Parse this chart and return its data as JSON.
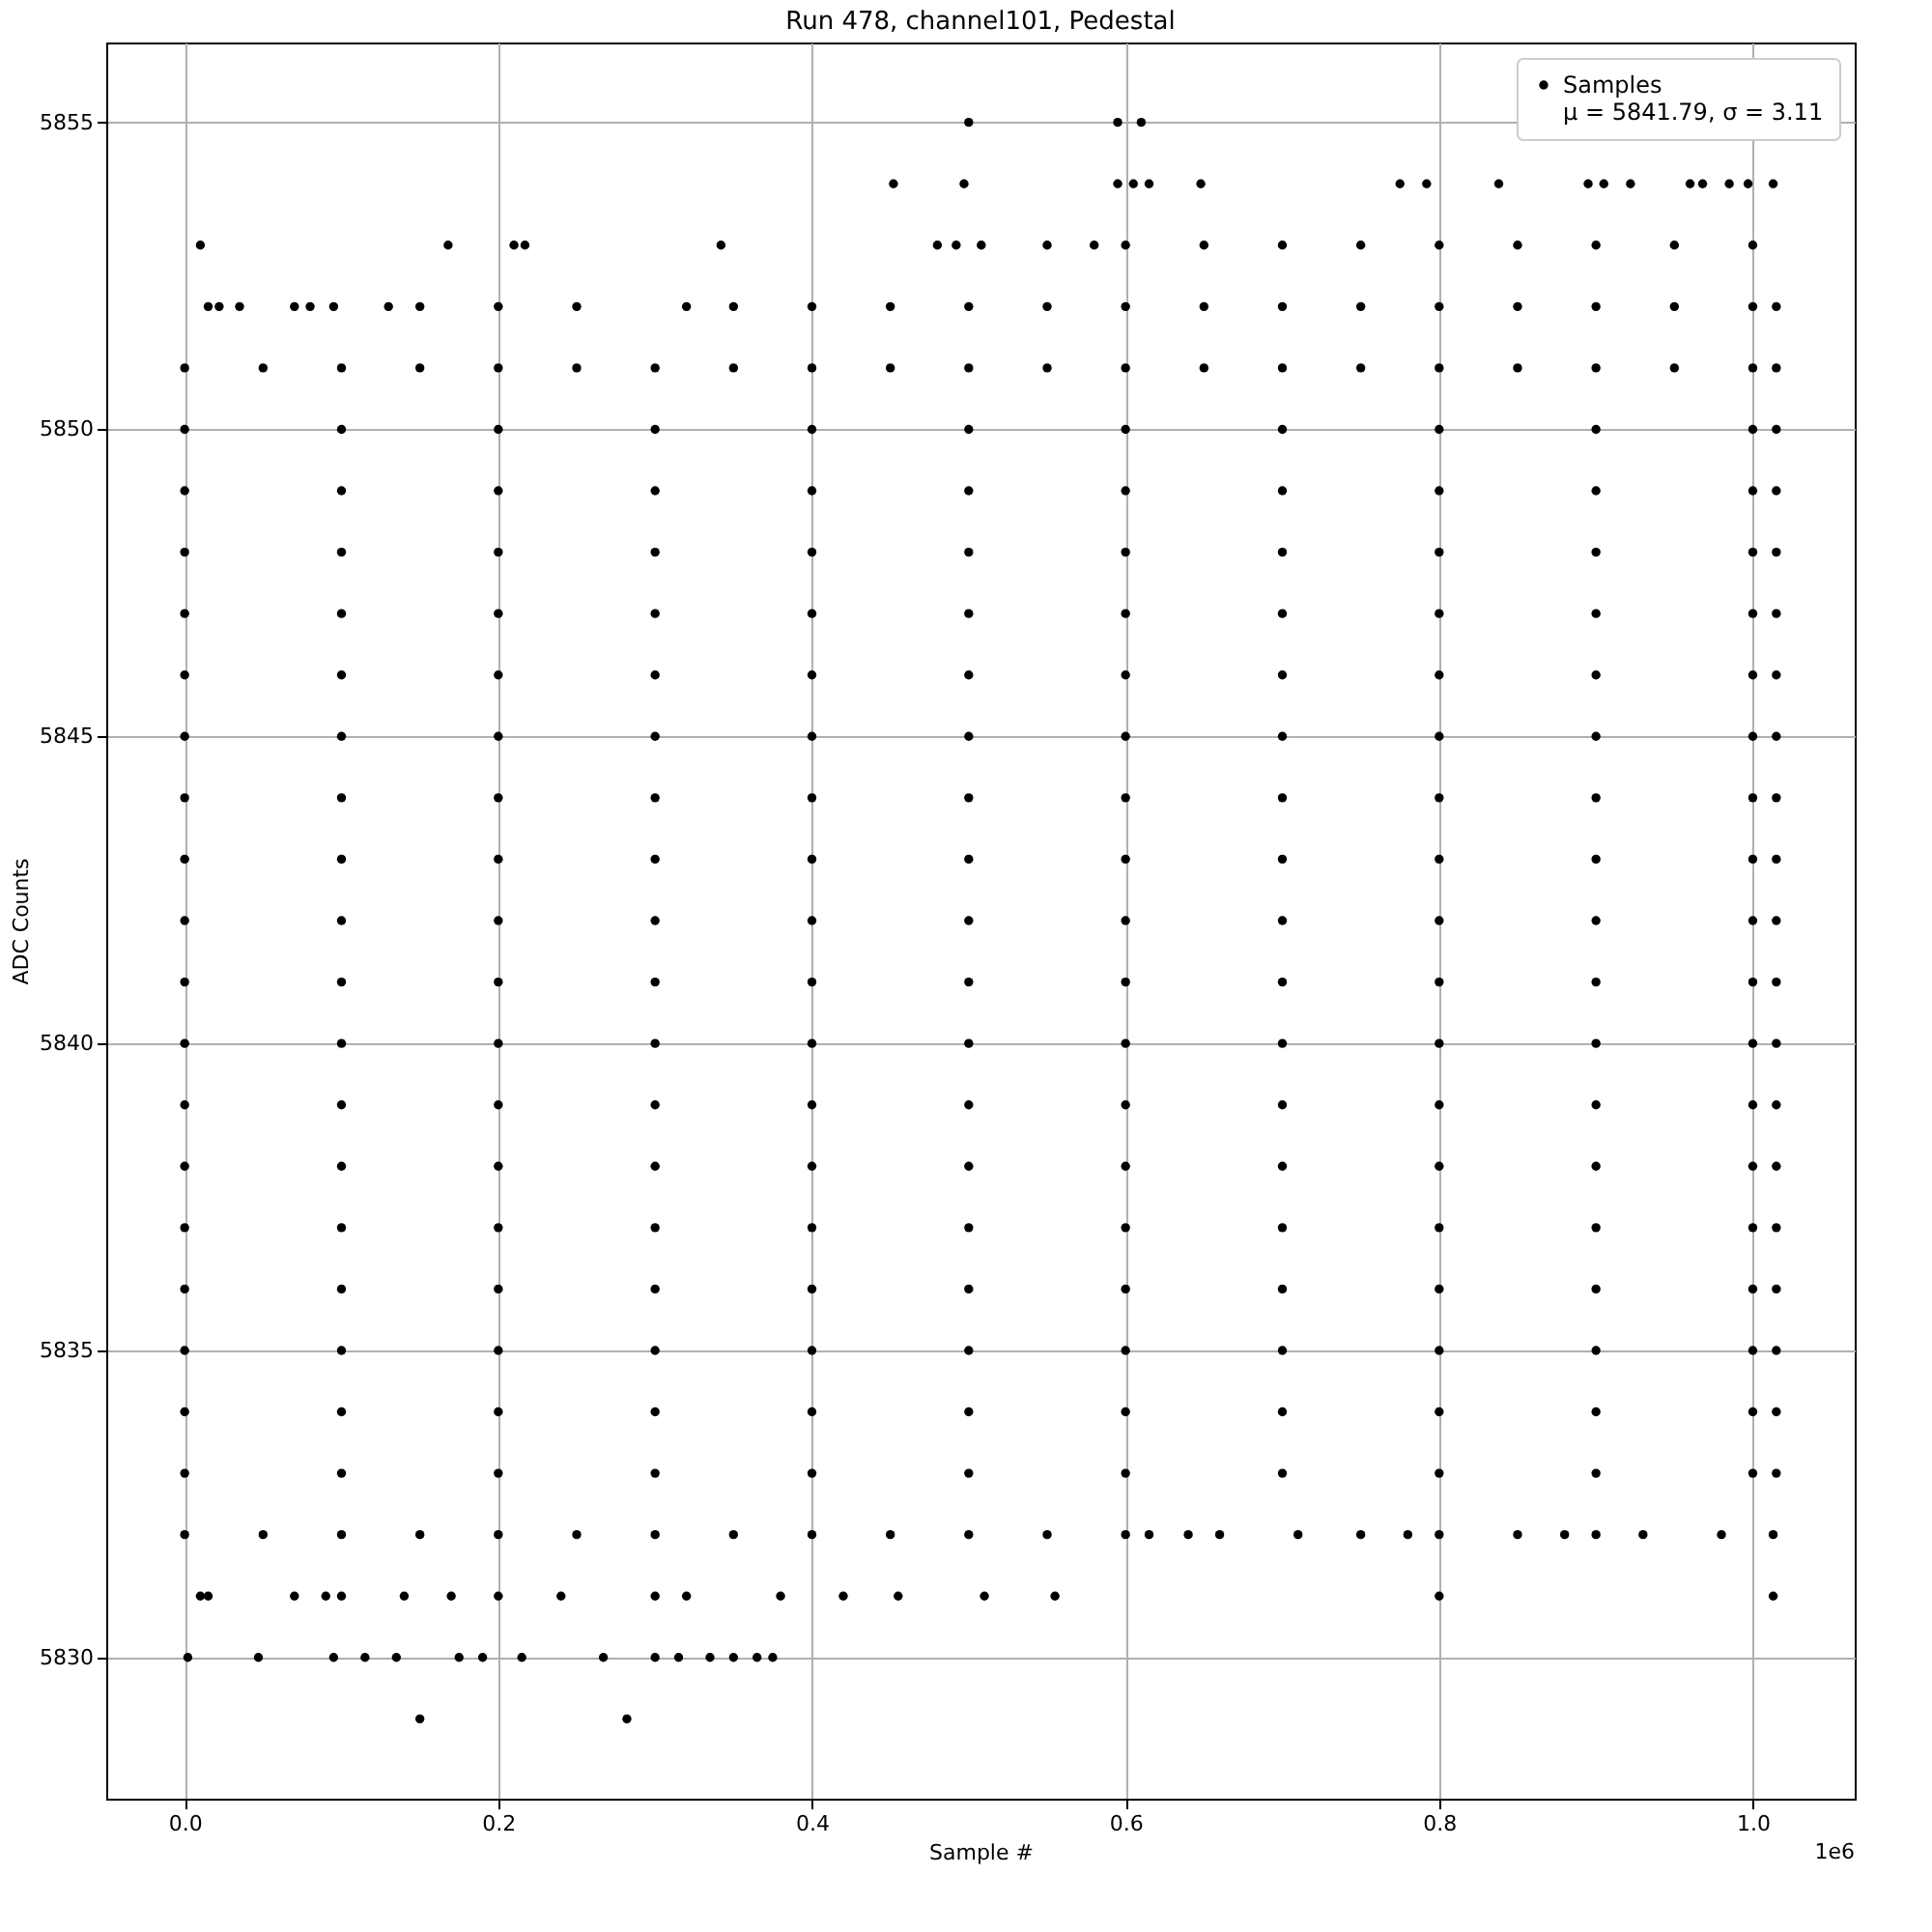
{
  "chart_data": {
    "type": "scatter",
    "title": "Run 478, channel101, Pedestal",
    "xlabel": "Sample #",
    "ylabel": "ADC Counts",
    "annotations": [
      "1e6",
      "μ = 5841.79, σ = 3.11"
    ],
    "xlim": [
      -0.05,
      1.065
    ],
    "ylim": [
      5827.7,
      5856.3
    ],
    "xticks": [
      {
        "value": 0,
        "label": "0.0"
      },
      {
        "value": 0.2,
        "label": "0.2"
      },
      {
        "value": 0.4,
        "label": "0.4"
      },
      {
        "value": 0.6,
        "label": "0.6"
      },
      {
        "value": 0.8,
        "label": "0.8"
      },
      {
        "value": 1.0,
        "label": "1.0"
      }
    ],
    "yticks": [
      5830,
      5835,
      5840,
      5845,
      5850,
      5855
    ],
    "grid": true,
    "legend": "top right",
    "marker": "circle",
    "series": [
      {
        "name": "Samples",
        "color": "#000000",
        "x": [
          0,
          0.1,
          0.2,
          0.3,
          0.4,
          0.5,
          0.6,
          0.7,
          0.8,
          0.9,
          1.0,
          1.015
        ],
        "values": [
          5850,
          5850,
          5850,
          5850,
          5850,
          5850,
          5850,
          5850,
          5850,
          5850,
          5850,
          5850
        ]
      },
      {
        "color": "#000000",
        "x": [
          0.5,
          0.595,
          0.61
        ],
        "values": [
          5855,
          5855,
          5855
        ]
      },
      {
        "color": "#000000",
        "x": [
          0.452,
          0.497,
          0.595,
          0.605,
          0.615,
          0.648,
          0.775,
          0.792,
          0.838,
          0.895,
          0.905,
          0.922,
          0.96,
          0.968,
          0.985,
          0.997,
          1.013
        ],
        "values": [
          5854,
          5854,
          5854,
          5854,
          5854,
          5854,
          5854,
          5854,
          5854,
          5854,
          5854,
          5854,
          5854,
          5854,
          5854,
          5854,
          5854
        ]
      },
      {
        "color": "#000000",
        "x": [
          0.01,
          0.168,
          0.21,
          0.217,
          0.342,
          0.48,
          0.492,
          0.508,
          0.55,
          0.58,
          0.6,
          0.65,
          0.7,
          0.75,
          0.8,
          0.85,
          0.9,
          0.95,
          1.0
        ],
        "values": [
          5853,
          5853,
          5853,
          5853,
          5853,
          5853,
          5853,
          5853,
          5853,
          5853,
          5853,
          5853,
          5853,
          5853,
          5853,
          5853,
          5853,
          5853,
          5853
        ]
      },
      {
        "color": "#000000",
        "x": [
          0.015,
          0.022,
          0.035,
          0.07,
          0.08,
          0.095,
          0.13,
          0.15,
          0.2,
          0.25,
          0.32,
          0.35,
          0.4,
          0.45,
          0.5,
          0.55,
          0.6,
          0.65,
          0.7,
          0.75,
          0.8,
          0.85,
          0.9,
          0.95,
          1.0,
          1.015
        ],
        "values": [
          5852,
          5852,
          5852,
          5852,
          5852,
          5852,
          5852,
          5852,
          5852,
          5852,
          5852,
          5852,
          5852,
          5852,
          5852,
          5852,
          5852,
          5852,
          5852,
          5852,
          5852,
          5852,
          5852,
          5852,
          5852,
          5852
        ]
      },
      {
        "color": "#000000",
        "x": [
          0,
          0.05,
          0.1,
          0.15,
          0.2,
          0.25,
          0.3,
          0.35,
          0.4,
          0.45,
          0.5,
          0.55,
          0.6,
          0.65,
          0.7,
          0.75,
          0.8,
          0.85,
          0.9,
          0.95,
          1.0,
          1.015
        ],
        "values": [
          5851,
          5851,
          5851,
          5851,
          5851,
          5851,
          5851,
          5851,
          5851,
          5851,
          5851,
          5851,
          5851,
          5851,
          5851,
          5851,
          5851,
          5851,
          5851,
          5851,
          5851,
          5851
        ]
      },
      {
        "color": "#000000",
        "x": [
          0,
          0.1,
          0.2,
          0.3,
          0.4,
          0.5,
          0.6,
          0.7,
          0.8,
          0.9,
          1.0,
          1.015
        ],
        "values": [
          5849,
          5849,
          5849,
          5849,
          5849,
          5849,
          5849,
          5849,
          5849,
          5849,
          5849,
          5849
        ]
      },
      {
        "color": "#000000",
        "x": [
          0,
          0.1,
          0.2,
          0.3,
          0.4,
          0.5,
          0.6,
          0.7,
          0.8,
          0.9,
          1.0,
          1.015
        ],
        "values": [
          5848,
          5848,
          5848,
          5848,
          5848,
          5848,
          5848,
          5848,
          5848,
          5848,
          5848,
          5848
        ]
      },
      {
        "color": "#000000",
        "x": [
          0,
          0.1,
          0.2,
          0.3,
          0.4,
          0.5,
          0.6,
          0.7,
          0.8,
          0.9,
          1.0,
          1.015
        ],
        "values": [
          5847,
          5847,
          5847,
          5847,
          5847,
          5847,
          5847,
          5847,
          5847,
          5847,
          5847,
          5847
        ]
      },
      {
        "color": "#000000",
        "x": [
          0,
          0.1,
          0.2,
          0.3,
          0.4,
          0.5,
          0.6,
          0.7,
          0.8,
          0.9,
          1.0,
          1.015
        ],
        "values": [
          5846,
          5846,
          5846,
          5846,
          5846,
          5846,
          5846,
          5846,
          5846,
          5846,
          5846,
          5846
        ]
      },
      {
        "color": "#000000",
        "x": [
          0,
          0.1,
          0.2,
          0.3,
          0.4,
          0.5,
          0.6,
          0.7,
          0.8,
          0.9,
          1.0,
          1.015
        ],
        "values": [
          5845,
          5845,
          5845,
          5845,
          5845,
          5845,
          5845,
          5845,
          5845,
          5845,
          5845,
          5845
        ]
      },
      {
        "color": "#000000",
        "x": [
          0,
          0.1,
          0.2,
          0.3,
          0.4,
          0.5,
          0.6,
          0.7,
          0.8,
          0.9,
          1.0,
          1.015
        ],
        "values": [
          5844,
          5844,
          5844,
          5844,
          5844,
          5844,
          5844,
          5844,
          5844,
          5844,
          5844,
          5844
        ]
      },
      {
        "color": "#000000",
        "x": [
          0,
          0.1,
          0.2,
          0.3,
          0.4,
          0.5,
          0.6,
          0.7,
          0.8,
          0.9,
          1.0,
          1.015
        ],
        "values": [
          5843,
          5843,
          5843,
          5843,
          5843,
          5843,
          5843,
          5843,
          5843,
          5843,
          5843,
          5843
        ]
      },
      {
        "color": "#000000",
        "x": [
          0,
          0.1,
          0.2,
          0.3,
          0.4,
          0.5,
          0.6,
          0.7,
          0.8,
          0.9,
          1.0,
          1.015
        ],
        "values": [
          5842,
          5842,
          5842,
          5842,
          5842,
          5842,
          5842,
          5842,
          5842,
          5842,
          5842,
          5842
        ]
      },
      {
        "color": "#000000",
        "x": [
          0,
          0.1,
          0.2,
          0.3,
          0.4,
          0.5,
          0.6,
          0.7,
          0.8,
          0.9,
          1.0,
          1.015
        ],
        "values": [
          5841,
          5841,
          5841,
          5841,
          5841,
          5841,
          5841,
          5841,
          5841,
          5841,
          5841,
          5841
        ]
      },
      {
        "color": "#000000",
        "x": [
          0,
          0.1,
          0.2,
          0.3,
          0.4,
          0.5,
          0.6,
          0.7,
          0.8,
          0.9,
          1.0,
          1.015
        ],
        "values": [
          5840,
          5840,
          5840,
          5840,
          5840,
          5840,
          5840,
          5840,
          5840,
          5840,
          5840,
          5840
        ]
      },
      {
        "color": "#000000",
        "x": [
          0,
          0.1,
          0.2,
          0.3,
          0.4,
          0.5,
          0.6,
          0.7,
          0.8,
          0.9,
          1.0,
          1.015
        ],
        "values": [
          5839,
          5839,
          5839,
          5839,
          5839,
          5839,
          5839,
          5839,
          5839,
          5839,
          5839,
          5839
        ]
      },
      {
        "color": "#000000",
        "x": [
          0,
          0.1,
          0.2,
          0.3,
          0.4,
          0.5,
          0.6,
          0.7,
          0.8,
          0.9,
          1.0,
          1.015
        ],
        "values": [
          5838,
          5838,
          5838,
          5838,
          5838,
          5838,
          5838,
          5838,
          5838,
          5838,
          5838,
          5838
        ]
      },
      {
        "color": "#000000",
        "x": [
          0,
          0.1,
          0.2,
          0.3,
          0.4,
          0.5,
          0.6,
          0.7,
          0.8,
          0.9,
          1.0,
          1.015
        ],
        "values": [
          5837,
          5837,
          5837,
          5837,
          5837,
          5837,
          5837,
          5837,
          5837,
          5837,
          5837,
          5837
        ]
      },
      {
        "color": "#000000",
        "x": [
          0,
          0.1,
          0.2,
          0.3,
          0.4,
          0.5,
          0.6,
          0.7,
          0.8,
          0.9,
          1.0,
          1.015
        ],
        "values": [
          5836,
          5836,
          5836,
          5836,
          5836,
          5836,
          5836,
          5836,
          5836,
          5836,
          5836,
          5836
        ]
      },
      {
        "color": "#000000",
        "x": [
          0,
          0.1,
          0.2,
          0.3,
          0.4,
          0.5,
          0.6,
          0.7,
          0.8,
          0.9,
          1.0,
          1.015
        ],
        "values": [
          5835,
          5835,
          5835,
          5835,
          5835,
          5835,
          5835,
          5835,
          5835,
          5835,
          5835,
          5835
        ]
      },
      {
        "color": "#000000",
        "x": [
          0,
          0.1,
          0.2,
          0.3,
          0.4,
          0.5,
          0.6,
          0.7,
          0.8,
          0.9,
          1.0,
          1.015
        ],
        "values": [
          5834,
          5834,
          5834,
          5834,
          5834,
          5834,
          5834,
          5834,
          5834,
          5834,
          5834,
          5834
        ]
      },
      {
        "color": "#000000",
        "x": [
          0,
          0.1,
          0.2,
          0.3,
          0.4,
          0.5,
          0.6,
          0.7,
          0.8,
          0.9,
          1.0,
          1.015
        ],
        "values": [
          5833,
          5833,
          5833,
          5833,
          5833,
          5833,
          5833,
          5833,
          5833,
          5833,
          5833,
          5833
        ]
      },
      {
        "color": "#000000",
        "x": [
          0,
          0.05,
          0.1,
          0.15,
          0.2,
          0.25,
          0.3,
          0.35,
          0.4,
          0.45,
          0.5,
          0.55,
          0.6,
          0.615,
          0.64,
          0.66,
          0.71,
          0.75,
          0.78,
          0.8,
          0.85,
          0.88,
          0.9,
          0.93,
          0.98,
          1.013
        ],
        "values": [
          5832,
          5832,
          5832,
          5832,
          5832,
          5832,
          5832,
          5832,
          5832,
          5832,
          5832,
          5832,
          5832,
          5832,
          5832,
          5832,
          5832,
          5832,
          5832,
          5832,
          5832,
          5832,
          5832,
          5832,
          5832,
          5832
        ]
      },
      {
        "color": "#000000",
        "x": [
          0.01,
          0.015,
          0.07,
          0.09,
          0.1,
          0.14,
          0.17,
          0.2,
          0.24,
          0.3,
          0.32,
          0.38,
          0.42,
          0.455,
          0.51,
          0.555,
          0.8,
          1.013
        ],
        "values": [
          5831,
          5831,
          5831,
          5831,
          5831,
          5831,
          5831,
          5831,
          5831,
          5831,
          5831,
          5831,
          5831,
          5831,
          5831,
          5831,
          5831,
          5831
        ]
      },
      {
        "color": "#000000",
        "x": [
          0.002,
          0.047,
          0.095,
          0.115,
          0.135,
          0.175,
          0.19,
          0.215,
          0.267,
          0.3,
          0.315,
          0.335,
          0.35,
          0.365,
          0.375
        ],
        "values": [
          5830,
          5830,
          5830,
          5830,
          5830,
          5830,
          5830,
          5830,
          5830,
          5830,
          5830,
          5830,
          5830,
          5830,
          5830
        ]
      },
      {
        "color": "#000000",
        "x": [
          0.15,
          0.282
        ],
        "values": [
          5829,
          5829
        ]
      }
    ]
  }
}
